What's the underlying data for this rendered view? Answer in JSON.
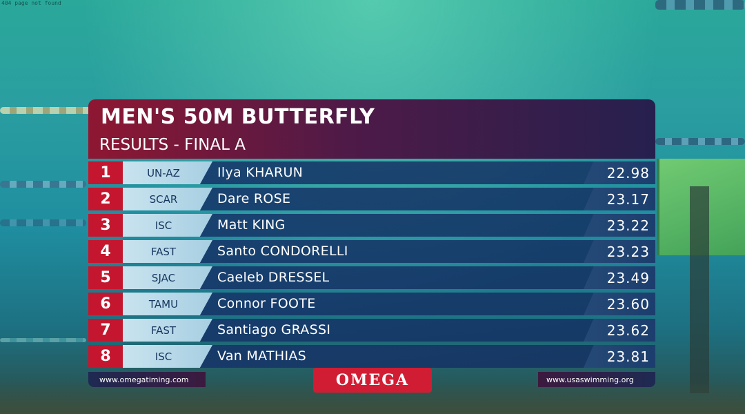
{
  "corner_text": "404 page not found",
  "board": {
    "title": "MEN'S 50M BUTTERFLY",
    "subtitle": "RESULTS - FINAL A",
    "results": [
      {
        "place": "1",
        "team": "UN-AZ",
        "name": "Ilya KHARUN",
        "time": "22.98"
      },
      {
        "place": "2",
        "team": "SCAR",
        "name": "Dare ROSE",
        "time": "23.17"
      },
      {
        "place": "3",
        "team": "ISC",
        "name": "Matt KING",
        "time": "23.22"
      },
      {
        "place": "4",
        "team": "FAST",
        "name": "Santo CONDORELLI",
        "time": "23.23"
      },
      {
        "place": "5",
        "team": "SJAC",
        "name": "Caeleb DRESSEL",
        "time": "23.49"
      },
      {
        "place": "6",
        "team": "TAMU",
        "name": "Connor FOOTE",
        "time": "23.60"
      },
      {
        "place": "7",
        "team": "FAST",
        "name": "Santiago GRASSI",
        "time": "23.62"
      },
      {
        "place": "8",
        "team": "ISC",
        "name": "Van MATHIAS",
        "time": "23.81"
      }
    ],
    "footer_left": "www.omegatiming.com",
    "footer_right": "www.usaswimming.org",
    "logo_text": "OMEGA"
  },
  "colors": {
    "place_red": "#c4172f",
    "header_start": "#8e1732",
    "header_end": "#26204e",
    "row_blue": "#16366a"
  }
}
